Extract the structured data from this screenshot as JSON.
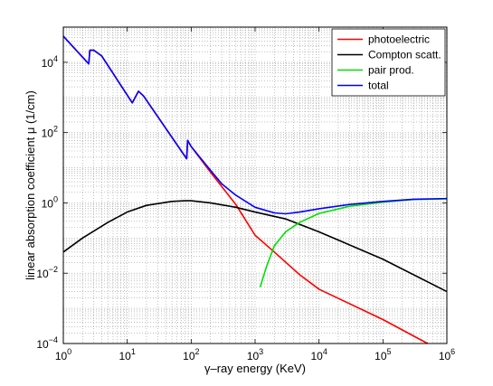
{
  "chart_data": {
    "type": "line",
    "xscale": "log",
    "yscale": "log",
    "xlim": [
      1,
      1000000
    ],
    "ylim": [
      0.0001,
      100000
    ],
    "grid": "major-and-minor dotted",
    "xlabel": "γ–ray energy (KeV)",
    "ylabel": "linear absorption coefficient μ (1/cm)",
    "legend_position": "top-right",
    "x_ticks": [
      {
        "value": 1,
        "base": "10",
        "exp": "0"
      },
      {
        "value": 10,
        "base": "10",
        "exp": "1"
      },
      {
        "value": 100,
        "base": "10",
        "exp": "2"
      },
      {
        "value": 1000,
        "base": "10",
        "exp": "3"
      },
      {
        "value": 10000,
        "base": "10",
        "exp": "4"
      },
      {
        "value": 100000,
        "base": "10",
        "exp": "5"
      },
      {
        "value": 1000000,
        "base": "10",
        "exp": "6"
      }
    ],
    "y_ticks": [
      {
        "value": 0.0001,
        "base": "10",
        "exp": "−4"
      },
      {
        "value": 0.01,
        "base": "10",
        "exp": "−2"
      },
      {
        "value": 1,
        "base": "10",
        "exp": "0"
      },
      {
        "value": 100,
        "base": "10",
        "exp": "2"
      },
      {
        "value": 10000,
        "base": "10",
        "exp": "4"
      }
    ],
    "series": [
      {
        "name": "photoelectric",
        "color": "#ff0000",
        "points": [
          [
            1,
            55000
          ],
          [
            2.5,
            9000
          ],
          [
            2.6,
            22000
          ],
          [
            3,
            22000
          ],
          [
            4,
            15000
          ],
          [
            12,
            700
          ],
          [
            15,
            1500
          ],
          [
            18,
            1100
          ],
          [
            85,
            18
          ],
          [
            88,
            60
          ],
          [
            100,
            40
          ],
          [
            200,
            7.5
          ],
          [
            500,
            0.9
          ],
          [
            1000,
            0.12
          ],
          [
            2000,
            0.04
          ],
          [
            5000,
            0.009
          ],
          [
            10000,
            0.0035
          ],
          [
            100000,
            0.00048
          ],
          [
            500000,
            0.0001
          ]
        ]
      },
      {
        "name": "Compton scatt.",
        "color": "#000000",
        "points": [
          [
            1,
            0.04
          ],
          [
            2,
            0.1
          ],
          [
            5,
            0.28
          ],
          [
            10,
            0.55
          ],
          [
            20,
            0.85
          ],
          [
            50,
            1.1
          ],
          [
            80,
            1.15
          ],
          [
            100,
            1.15
          ],
          [
            200,
            1.0
          ],
          [
            500,
            0.75
          ],
          [
            1000,
            0.55
          ],
          [
            3000,
            0.35
          ],
          [
            10000,
            0.15
          ],
          [
            100000,
            0.025
          ],
          [
            1000000,
            0.003
          ]
        ]
      },
      {
        "name": "pair prod.",
        "color": "#00e000",
        "points": [
          [
            1200,
            0.004
          ],
          [
            1500,
            0.015
          ],
          [
            2000,
            0.06
          ],
          [
            3000,
            0.15
          ],
          [
            5000,
            0.28
          ],
          [
            10000,
            0.5
          ],
          [
            30000,
            0.8
          ],
          [
            100000,
            1.05
          ],
          [
            300000,
            1.25
          ],
          [
            1000000,
            1.3
          ]
        ]
      },
      {
        "name": "total",
        "color": "#0000ff",
        "points": [
          [
            1,
            55000
          ],
          [
            2.5,
            9000
          ],
          [
            2.6,
            22000
          ],
          [
            3,
            22000
          ],
          [
            4,
            15000
          ],
          [
            12,
            700
          ],
          [
            15,
            1500
          ],
          [
            18,
            1100
          ],
          [
            85,
            18
          ],
          [
            88,
            60
          ],
          [
            100,
            40
          ],
          [
            200,
            8.5
          ],
          [
            300,
            3.5
          ],
          [
            500,
            1.65
          ],
          [
            1000,
            0.75
          ],
          [
            2000,
            0.52
          ],
          [
            3000,
            0.49
          ],
          [
            5000,
            0.55
          ],
          [
            10000,
            0.68
          ],
          [
            30000,
            0.9
          ],
          [
            100000,
            1.1
          ],
          [
            300000,
            1.27
          ],
          [
            1000000,
            1.33
          ]
        ]
      }
    ]
  }
}
